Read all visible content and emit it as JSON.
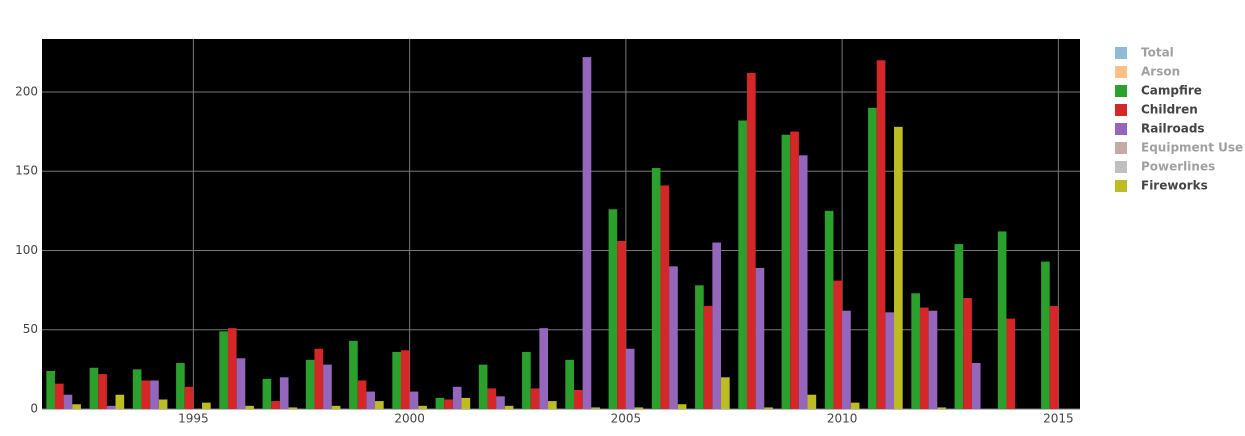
{
  "chart_data": {
    "type": "bar",
    "x": [
      1992,
      1993,
      1994,
      1995,
      1996,
      1997,
      1998,
      1999,
      2000,
      2001,
      2002,
      2003,
      2004,
      2005,
      2006,
      2007,
      2008,
      2009,
      2010,
      2011,
      2012,
      2013,
      2014,
      2015
    ],
    "series": [
      {
        "name": "Total",
        "color": "#1f77b4",
        "visible": false
      },
      {
        "name": "Arson",
        "color": "#ff7f0e",
        "visible": false
      },
      {
        "name": "Campfire",
        "color": "#2ca02c",
        "visible": true,
        "values": [
          24,
          26,
          25,
          29,
          49,
          19,
          31,
          43,
          36,
          7,
          28,
          36,
          31,
          126,
          152,
          78,
          182,
          173,
          125,
          190,
          73,
          104,
          112,
          93
        ]
      },
      {
        "name": "Children",
        "color": "#d62728",
        "visible": true,
        "values": [
          16,
          22,
          18,
          14,
          51,
          5,
          38,
          18,
          37,
          6,
          13,
          13,
          12,
          106,
          141,
          65,
          212,
          175,
          81,
          220,
          64,
          70,
          57,
          65
        ]
      },
      {
        "name": "Railroads",
        "color": "#9467bd",
        "visible": true,
        "values": [
          9,
          2,
          18,
          0,
          32,
          20,
          28,
          11,
          11,
          14,
          8,
          51,
          222,
          38,
          90,
          105,
          89,
          160,
          62,
          61,
          62,
          29,
          null,
          null
        ]
      },
      {
        "name": "Equipment Use",
        "color": "#8c564b",
        "visible": false
      },
      {
        "name": "Powerlines",
        "color": "#7f7f7f",
        "visible": false
      },
      {
        "name": "Fireworks",
        "color": "#bcbd22",
        "visible": true,
        "values": [
          3,
          9,
          6,
          4,
          2,
          1,
          2,
          5,
          2,
          7,
          2,
          5,
          1,
          1,
          3,
          20,
          1,
          9,
          4,
          178,
          1,
          0,
          null,
          null
        ]
      }
    ],
    "xlim": [
      1991.5,
      2015.5
    ],
    "xticks": [
      1995,
      2000,
      2005,
      2010,
      2015
    ],
    "ylim": [
      0,
      233.4
    ],
    "yticks": [
      0,
      50,
      100,
      150,
      200
    ],
    "grid": true,
    "legend": "right"
  }
}
